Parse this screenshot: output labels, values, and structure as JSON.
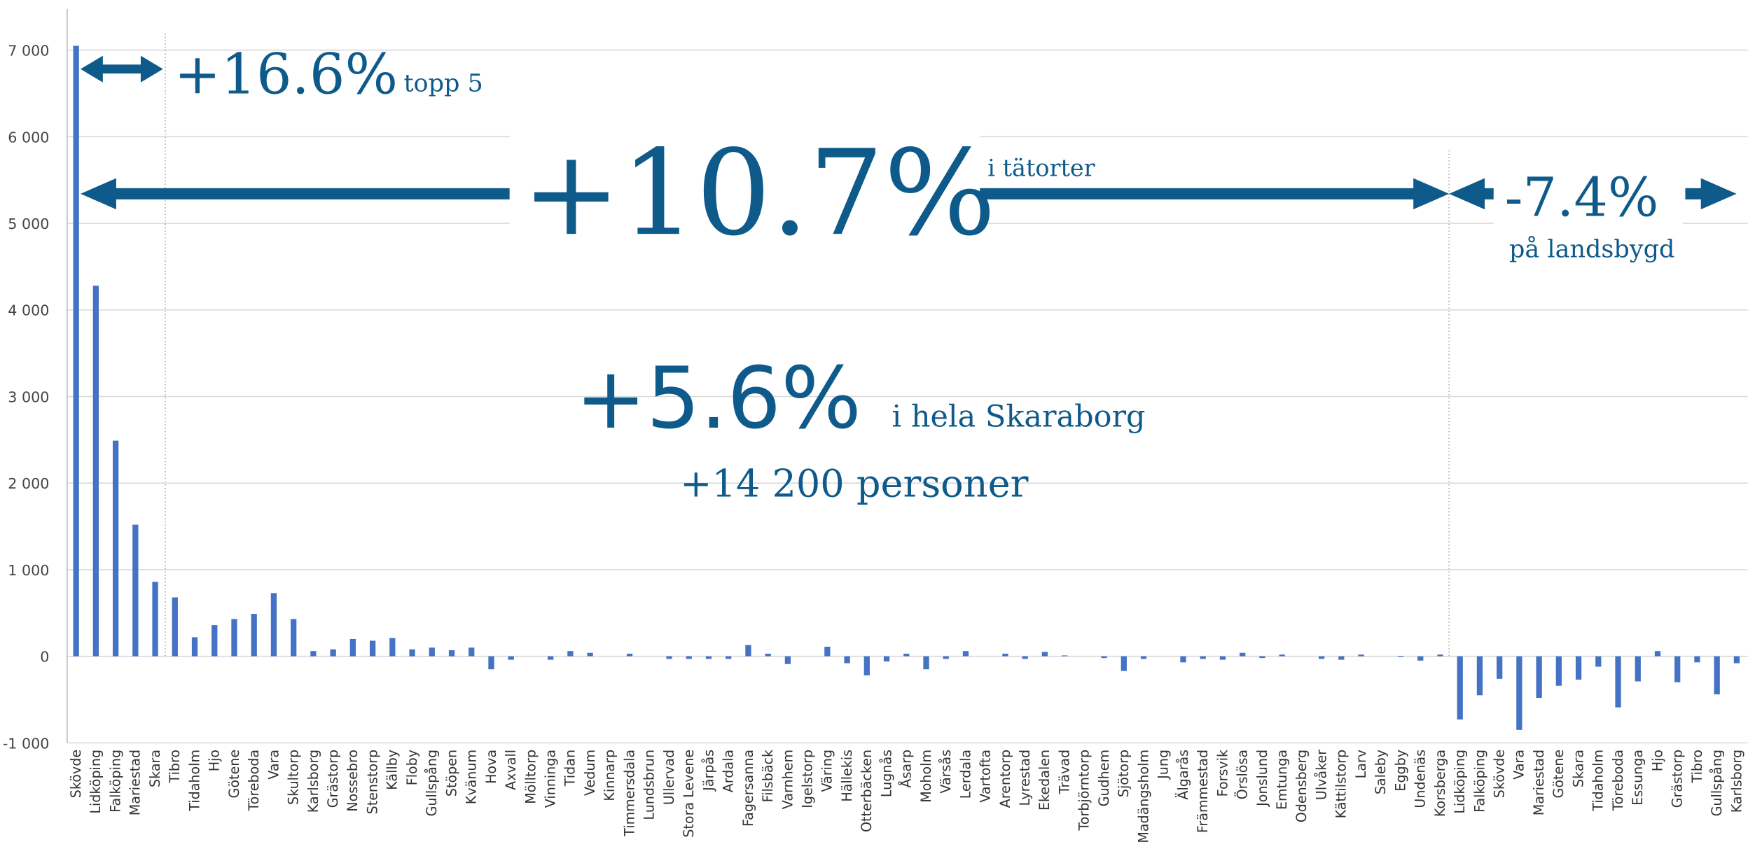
{
  "chart_data": {
    "type": "bar",
    "annotations": {
      "top5_pct": "+16.6%",
      "top5_label": "topp 5",
      "urban_pct": "+10.7%",
      "urban_label": "i tätorter",
      "rural_pct": "-7.4%",
      "rural_label": "på landsbygd",
      "total_pct": "+5.6%",
      "total_label": "i hela Skaraborg",
      "total_people": "+14 200 personer"
    },
    "categories": [
      "Skövde",
      "Lidköping",
      "Falköping",
      "Mariestad",
      "Skara",
      "Tibro",
      "Tidaholm",
      "Hjo",
      "Götene",
      "Töreboda",
      "Vara",
      "Skultorp",
      "Karlsborg",
      "Grästorp",
      "Nossebro",
      "Stenstorp",
      "Källby",
      "Floby",
      "Gullspång",
      "Stöpen",
      "Kvänum",
      "Hova",
      "Axvall",
      "Mölltorp",
      "Vinninga",
      "Tidan",
      "Vedum",
      "Kinnarp",
      "Timmersdala",
      "Lundsbrun",
      "Ullervad",
      "Stora Levene",
      "Järpås",
      "Ardala",
      "Fagersanna",
      "Filsbäck",
      "Varnhem",
      "Igelstorp",
      "Väring",
      "Hällekis",
      "Otterbäcken",
      "Lugnås",
      "Åsarp",
      "Moholm",
      "Värsås",
      "Lerdala",
      "Vartofta",
      "Arentorp",
      "Lyrestad",
      "Ekedalen",
      "Trävad",
      "Torbjörntorp",
      "Gudhem",
      "Sjötorp",
      "Madängsholm",
      "Jung",
      "Älgarås",
      "Främmestad",
      "Forsvik",
      "Örslösa",
      "Jonslund",
      "Emtunga",
      "Odensberg",
      "Ulvåker",
      "Kättilstorp",
      "Larv",
      "Saleby",
      "Eggby",
      "Undenäs",
      "Korsberga",
      "Lidköping",
      "Falköping",
      "Skövde",
      "Vara",
      "Mariestad",
      "Götene",
      "Skara",
      "Tidaholm",
      "Töreboda",
      "Essunga",
      "Hjo",
      "Grästorp",
      "Tibro",
      "Gullspång",
      "Karlsborg"
    ],
    "values": [
      7050,
      4280,
      2490,
      1520,
      860,
      680,
      220,
      360,
      430,
      490,
      730,
      430,
      60,
      80,
      200,
      180,
      210,
      80,
      100,
      70,
      100,
      -150,
      -40,
      0,
      -40,
      60,
      40,
      0,
      30,
      0,
      -30,
      -30,
      -30,
      -30,
      130,
      30,
      -90,
      0,
      110,
      -80,
      -220,
      -60,
      30,
      -150,
      -30,
      60,
      0,
      30,
      -30,
      50,
      10,
      0,
      -20,
      -170,
      -30,
      0,
      -70,
      -30,
      -40,
      40,
      -20,
      20,
      0,
      -30,
      -40,
      20,
      0,
      -10,
      -50,
      20,
      -730,
      -450,
      -260,
      -850,
      -480,
      -340,
      -270,
      -120,
      -590,
      -290,
      60,
      -300,
      -70,
      -440,
      -80
    ],
    "color": "#4472c4",
    "ylim": [
      -1000,
      7000
    ],
    "yticks": [
      {
        "value": -1000,
        "label": "-1 000"
      },
      0,
      {
        "value": 1000,
        "label": "1 000"
      },
      {
        "value": 2000,
        "label": "2 000"
      },
      {
        "value": 3000,
        "label": "3 000"
      },
      {
        "value": 4000,
        "label": "4 000"
      },
      {
        "value": 5000,
        "label": "5 000"
      },
      {
        "value": 6000,
        "label": "6 000"
      },
      {
        "value": 7000,
        "label": "7 000"
      }
    ],
    "grid": true
  }
}
